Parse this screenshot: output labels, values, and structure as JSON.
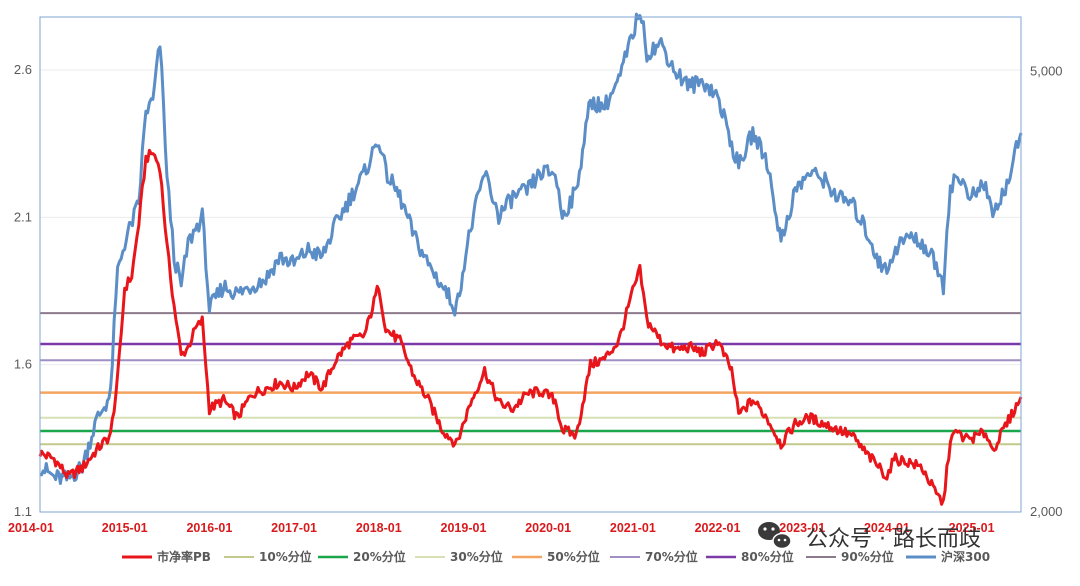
{
  "chart_data": {
    "type": "line",
    "left_axis": {
      "ticks": [
        1.1,
        1.6,
        2.1,
        2.6
      ],
      "tick_labels": [
        "1.1",
        "1.6",
        "2.1",
        "2.6"
      ],
      "range": [
        1.1,
        2.78
      ]
    },
    "right_axis": {
      "ticks": [
        2000,
        5000
      ],
      "tick_labels": [
        "2,000",
        "5,000"
      ],
      "scale": "log",
      "range": [
        2000,
        5600
      ]
    },
    "x_axis": {
      "tick_labels": [
        "2014-01",
        "2015-01",
        "2016-01",
        "2017-01",
        "2018-01",
        "2019-01",
        "2020-01",
        "2021-01",
        "2022-01",
        "2023-01",
        "2024-01",
        "2025-01"
      ],
      "range": [
        "2014-01",
        "2025-08"
      ]
    },
    "reference_lines": [
      {
        "name": "10%分位",
        "value": 1.33,
        "color": "#c3c98a"
      },
      {
        "name": "20%分位",
        "value": 1.375,
        "color": "#1aa64a"
      },
      {
        "name": "30%分位",
        "value": 1.42,
        "color": "#d6e0b4"
      },
      {
        "name": "50%分位",
        "value": 1.505,
        "color": "#f4a460"
      },
      {
        "name": "70%分位",
        "value": 1.615,
        "color": "#9f8fc4"
      },
      {
        "name": "80%分位",
        "value": 1.67,
        "color": "#7b3aa8"
      },
      {
        "name": "90%分位",
        "value": 1.775,
        "color": "#8c7a8c"
      }
    ],
    "series": [
      {
        "name": "市净率PB",
        "axis": "left",
        "color": "#e8161a",
        "points": [
          [
            "2014-01",
            1.3
          ],
          [
            "2014-03",
            1.28
          ],
          [
            "2014-05",
            1.22
          ],
          [
            "2014-07",
            1.25
          ],
          [
            "2014-09",
            1.31
          ],
          [
            "2014-11",
            1.36
          ],
          [
            "2014-12",
            1.55
          ],
          [
            "2015-01",
            1.86
          ],
          [
            "2015-02",
            1.9
          ],
          [
            "2015-03",
            2.08
          ],
          [
            "2015-04",
            2.3
          ],
          [
            "2015-05",
            2.32
          ],
          [
            "2015-06",
            2.27
          ],
          [
            "2015-07",
            2.0
          ],
          [
            "2015-08",
            1.8
          ],
          [
            "2015-09",
            1.63
          ],
          [
            "2015-10",
            1.66
          ],
          [
            "2015-11",
            1.72
          ],
          [
            "2015-12",
            1.75
          ],
          [
            "2016-01",
            1.45
          ],
          [
            "2016-03",
            1.48
          ],
          [
            "2016-05",
            1.42
          ],
          [
            "2016-07",
            1.5
          ],
          [
            "2016-09",
            1.52
          ],
          [
            "2016-11",
            1.54
          ],
          [
            "2017-01",
            1.52
          ],
          [
            "2017-03",
            1.57
          ],
          [
            "2017-05",
            1.52
          ],
          [
            "2017-07",
            1.62
          ],
          [
            "2017-09",
            1.68
          ],
          [
            "2017-11",
            1.7
          ],
          [
            "2018-01",
            1.87
          ],
          [
            "2018-02",
            1.72
          ],
          [
            "2018-04",
            1.68
          ],
          [
            "2018-06",
            1.56
          ],
          [
            "2018-08",
            1.48
          ],
          [
            "2018-10",
            1.38
          ],
          [
            "2018-12",
            1.33
          ],
          [
            "2019-02",
            1.47
          ],
          [
            "2019-04",
            1.58
          ],
          [
            "2019-06",
            1.47
          ],
          [
            "2019-08",
            1.45
          ],
          [
            "2019-10",
            1.5
          ],
          [
            "2019-12",
            1.51
          ],
          [
            "2020-02",
            1.48
          ],
          [
            "2020-03",
            1.38
          ],
          [
            "2020-05",
            1.36
          ],
          [
            "2020-07",
            1.6
          ],
          [
            "2020-09",
            1.62
          ],
          [
            "2020-11",
            1.68
          ],
          [
            "2021-01",
            1.85
          ],
          [
            "2021-02",
            1.92
          ],
          [
            "2021-03",
            1.75
          ],
          [
            "2021-05",
            1.68
          ],
          [
            "2021-07",
            1.65
          ],
          [
            "2021-09",
            1.66
          ],
          [
            "2021-11",
            1.64
          ],
          [
            "2022-01",
            1.68
          ],
          [
            "2022-03",
            1.58
          ],
          [
            "2022-04",
            1.43
          ],
          [
            "2022-06",
            1.48
          ],
          [
            "2022-08",
            1.42
          ],
          [
            "2022-10",
            1.33
          ],
          [
            "2022-12",
            1.4
          ],
          [
            "2023-02",
            1.42
          ],
          [
            "2023-04",
            1.4
          ],
          [
            "2023-06",
            1.38
          ],
          [
            "2023-08",
            1.36
          ],
          [
            "2023-10",
            1.3
          ],
          [
            "2023-12",
            1.25
          ],
          [
            "2024-01",
            1.22
          ],
          [
            "2024-02",
            1.28
          ],
          [
            "2024-04",
            1.27
          ],
          [
            "2024-06",
            1.25
          ],
          [
            "2024-08",
            1.16
          ],
          [
            "2024-09",
            1.13
          ],
          [
            "2024-10",
            1.35
          ],
          [
            "2024-11",
            1.37
          ],
          [
            "2024-12",
            1.35
          ],
          [
            "2025-01",
            1.35
          ],
          [
            "2025-03",
            1.37
          ],
          [
            "2025-04",
            1.31
          ],
          [
            "2025-06",
            1.4
          ],
          [
            "2025-08",
            1.49
          ]
        ]
      },
      {
        "name": "沪深300",
        "axis": "right",
        "color": "#5b8ec7",
        "points": [
          [
            "2014-01",
            2200
          ],
          [
            "2014-03",
            2150
          ],
          [
            "2014-05",
            2140
          ],
          [
            "2014-07",
            2200
          ],
          [
            "2014-09",
            2420
          ],
          [
            "2014-11",
            2550
          ],
          [
            "2014-12",
            3300
          ],
          [
            "2015-01",
            3500
          ],
          [
            "2015-03",
            3800
          ],
          [
            "2015-04",
            4600
          ],
          [
            "2015-05",
            4700
          ],
          [
            "2015-06",
            5300
          ],
          [
            "2015-07",
            4000
          ],
          [
            "2015-08",
            3400
          ],
          [
            "2015-09",
            3200
          ],
          [
            "2015-10",
            3500
          ],
          [
            "2015-11",
            3600
          ],
          [
            "2015-12",
            3700
          ],
          [
            "2016-01",
            3050
          ],
          [
            "2016-03",
            3200
          ],
          [
            "2016-05",
            3150
          ],
          [
            "2016-07",
            3200
          ],
          [
            "2016-09",
            3250
          ],
          [
            "2016-11",
            3400
          ],
          [
            "2017-01",
            3350
          ],
          [
            "2017-03",
            3450
          ],
          [
            "2017-05",
            3400
          ],
          [
            "2017-07",
            3650
          ],
          [
            "2017-09",
            3850
          ],
          [
            "2017-11",
            4050
          ],
          [
            "2018-01",
            4350
          ],
          [
            "2018-02",
            4050
          ],
          [
            "2018-04",
            3850
          ],
          [
            "2018-06",
            3550
          ],
          [
            "2018-08",
            3350
          ],
          [
            "2018-10",
            3200
          ],
          [
            "2018-12",
            3050
          ],
          [
            "2019-02",
            3600
          ],
          [
            "2019-04",
            4050
          ],
          [
            "2019-06",
            3700
          ],
          [
            "2019-08",
            3850
          ],
          [
            "2019-10",
            3900
          ],
          [
            "2019-12",
            4050
          ],
          [
            "2020-02",
            4050
          ],
          [
            "2020-03",
            3700
          ],
          [
            "2020-05",
            3900
          ],
          [
            "2020-07",
            4700
          ],
          [
            "2020-09",
            4650
          ],
          [
            "2020-11",
            4900
          ],
          [
            "2021-01",
            5400
          ],
          [
            "2021-02",
            5700
          ],
          [
            "2021-03",
            5200
          ],
          [
            "2021-05",
            5300
          ],
          [
            "2021-07",
            5000
          ],
          [
            "2021-09",
            4850
          ],
          [
            "2021-11",
            4900
          ],
          [
            "2022-01",
            4750
          ],
          [
            "2022-03",
            4300
          ],
          [
            "2022-04",
            4100
          ],
          [
            "2022-06",
            4400
          ],
          [
            "2022-08",
            4150
          ],
          [
            "2022-10",
            3500
          ],
          [
            "2022-12",
            3900
          ],
          [
            "2023-02",
            4050
          ],
          [
            "2023-04",
            4000
          ],
          [
            "2023-06",
            3850
          ],
          [
            "2023-08",
            3800
          ],
          [
            "2023-10",
            3600
          ],
          [
            "2023-12",
            3350
          ],
          [
            "2024-01",
            3300
          ],
          [
            "2024-02",
            3450
          ],
          [
            "2024-04",
            3550
          ],
          [
            "2024-06",
            3500
          ],
          [
            "2024-08",
            3350
          ],
          [
            "2024-09",
            3200
          ],
          [
            "2024-10",
            3950
          ],
          [
            "2024-11",
            4000
          ],
          [
            "2024-12",
            3950
          ],
          [
            "2025-01",
            3850
          ],
          [
            "2025-03",
            3950
          ],
          [
            "2025-04",
            3700
          ],
          [
            "2025-06",
            3950
          ],
          [
            "2025-08",
            4400
          ]
        ]
      }
    ],
    "legend": {
      "position": "bottom",
      "entries": [
        {
          "label": "市净率PB",
          "color": "#e8161a",
          "width": 3
        },
        {
          "label": "10%分位",
          "color": "#c3c98a",
          "width": 2
        },
        {
          "label": "20%分位",
          "color": "#1aa64a",
          "width": 2.5
        },
        {
          "label": "30%分位",
          "color": "#d6e0b4",
          "width": 2
        },
        {
          "label": "50%分位",
          "color": "#f4a460",
          "width": 2.5
        },
        {
          "label": "70%分位",
          "color": "#9f8fc4",
          "width": 2
        },
        {
          "label": "80%分位",
          "color": "#7b3aa8",
          "width": 2.5
        },
        {
          "label": "90%分位",
          "color": "#8c7a8c",
          "width": 2
        },
        {
          "label": "沪深300",
          "color": "#5b8ec7",
          "width": 3
        }
      ]
    },
    "grid": true
  },
  "watermark": {
    "text": "公众号 · 路长而歧",
    "icon": "wechat-icon"
  }
}
